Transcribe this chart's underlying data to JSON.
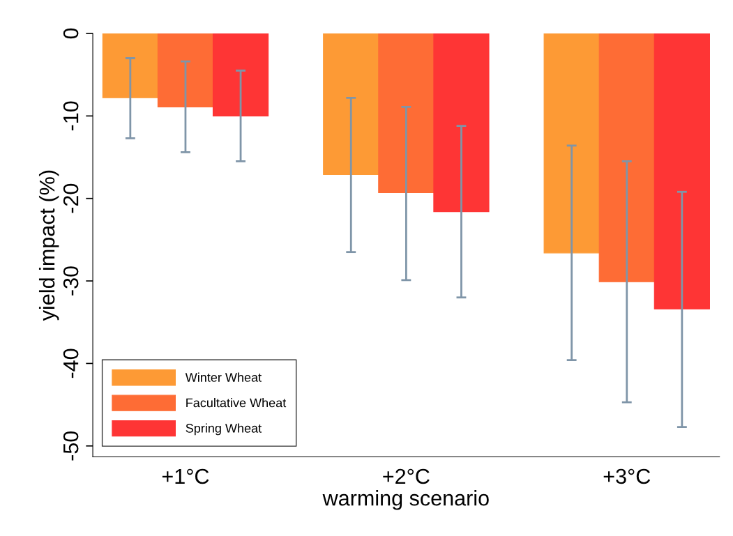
{
  "chart_data": {
    "type": "bar",
    "xlabel": "warming scenario",
    "ylabel": "yield impact (%)",
    "categories": [
      "+1°C",
      "+2°C",
      "+3°C"
    ],
    "series": [
      {
        "name": "Winter Wheat",
        "color": "#fd9a35",
        "values": [
          -7.8,
          -17.1,
          -26.6
        ],
        "errors": [
          [
            -12.7,
            -3.0
          ],
          [
            -26.5,
            -7.8
          ],
          [
            -39.6,
            -13.6
          ]
        ]
      },
      {
        "name": "Facultative Wheat",
        "color": "#fe6c35",
        "values": [
          -8.9,
          -19.3,
          -30.1
        ],
        "errors": [
          [
            -14.4,
            -3.4
          ],
          [
            -29.9,
            -8.9
          ],
          [
            -44.7,
            -15.5
          ]
        ]
      },
      {
        "name": "Spring Wheat",
        "color": "#fe3535",
        "values": [
          -10.0,
          -21.6,
          -33.4
        ],
        "errors": [
          [
            -15.5,
            -4.5
          ],
          [
            -32.0,
            -11.2
          ],
          [
            -47.7,
            -19.2
          ]
        ]
      }
    ],
    "ylim": [
      -51.3,
      0
    ],
    "yticks": [
      0,
      -10,
      -20,
      -30,
      -40,
      -50
    ],
    "grid": false,
    "legend": "bottom left"
  }
}
